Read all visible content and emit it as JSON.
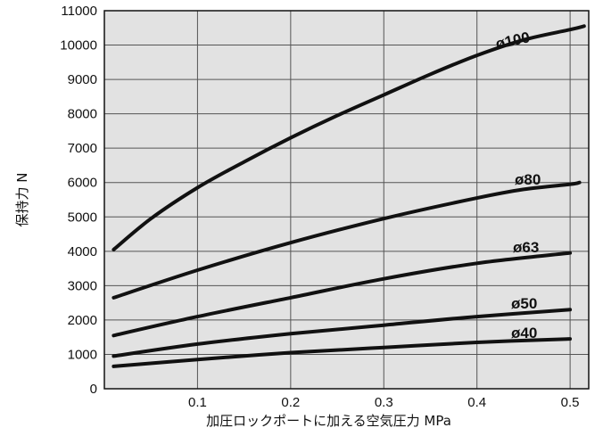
{
  "chart_data": {
    "type": "line",
    "title": "",
    "xlabel": "加圧ロックポートに加える空気圧力 MPa",
    "ylabel": "保持力 N",
    "xlim": [
      0,
      0.52
    ],
    "ylim": [
      0,
      11000
    ],
    "x_ticks": [
      "0.1",
      "0.2",
      "0.3",
      "0.4",
      "0.5"
    ],
    "y_ticks": [
      "0",
      "1000",
      "2000",
      "3000",
      "4000",
      "5000",
      "6000",
      "7000",
      "8000",
      "9000",
      "10000",
      "11000"
    ],
    "grid": true,
    "series": [
      {
        "name": "ø100",
        "x": [
          0.01,
          0.05,
          0.1,
          0.15,
          0.2,
          0.25,
          0.3,
          0.35,
          0.4,
          0.45,
          0.5,
          0.515
        ],
        "y": [
          4050,
          4950,
          5850,
          6600,
          7300,
          7950,
          8550,
          9150,
          9700,
          10150,
          10450,
          10550
        ]
      },
      {
        "name": "ø80",
        "x": [
          0.01,
          0.1,
          0.2,
          0.3,
          0.4,
          0.45,
          0.5,
          0.51
        ],
        "y": [
          2650,
          3450,
          4250,
          4950,
          5550,
          5800,
          5950,
          6000
        ]
      },
      {
        "name": "ø63",
        "x": [
          0.01,
          0.1,
          0.2,
          0.3,
          0.4,
          0.5
        ],
        "y": [
          1550,
          2100,
          2650,
          3200,
          3650,
          3950
        ]
      },
      {
        "name": "ø50",
        "x": [
          0.01,
          0.1,
          0.2,
          0.3,
          0.4,
          0.5
        ],
        "y": [
          950,
          1300,
          1600,
          1850,
          2100,
          2300
        ]
      },
      {
        "name": "ø40",
        "x": [
          0.01,
          0.1,
          0.2,
          0.3,
          0.4,
          0.5
        ],
        "y": [
          650,
          850,
          1050,
          1200,
          1350,
          1450
        ]
      }
    ]
  }
}
